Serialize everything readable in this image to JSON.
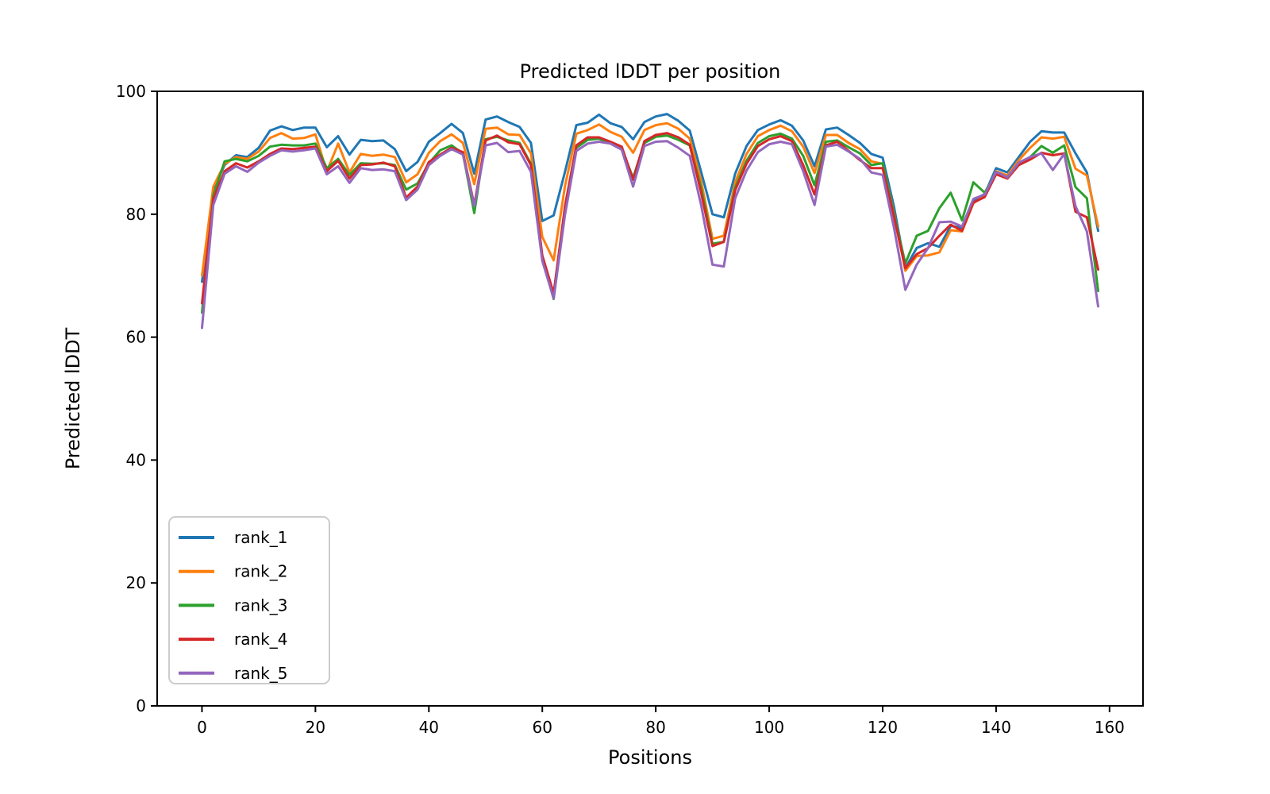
{
  "chart_data": {
    "type": "line",
    "title": "Predicted lDDT per position",
    "xlabel": "Positions",
    "ylabel": "Predicted lDDT",
    "legend_position": "lower-left",
    "axes": {
      "xlim": [
        -7.9,
        165.9
      ],
      "ylim": [
        0,
        100
      ],
      "xticks": [
        0,
        20,
        40,
        60,
        80,
        100,
        120,
        140,
        160
      ],
      "yticks": [
        0,
        20,
        40,
        60,
        80,
        100
      ],
      "grid": false
    },
    "x": [
      0,
      2,
      4,
      6,
      8,
      10,
      12,
      14,
      16,
      18,
      20,
      22,
      24,
      26,
      28,
      30,
      32,
      34,
      36,
      38,
      40,
      42,
      44,
      46,
      48,
      50,
      52,
      54,
      56,
      58,
      60,
      62,
      64,
      66,
      68,
      70,
      72,
      74,
      76,
      78,
      80,
      82,
      84,
      86,
      88,
      90,
      92,
      94,
      96,
      98,
      100,
      102,
      104,
      106,
      108,
      110,
      112,
      114,
      116,
      118,
      120,
      122,
      124,
      126,
      128,
      130,
      132,
      134,
      136,
      138,
      140,
      142,
      144,
      146,
      148,
      150,
      152,
      154,
      156,
      158
    ],
    "series": [
      {
        "name": "rank_1",
        "color": "#1f77b4",
        "values": [
          69.0,
          84.0,
          88.0,
          89.6,
          89.3,
          90.8,
          93.6,
          94.3,
          93.7,
          94.1,
          94.1,
          90.9,
          92.7,
          89.7,
          92.1,
          91.9,
          92.0,
          90.6,
          87.0,
          88.5,
          91.8,
          93.2,
          94.7,
          93.2,
          86.6,
          95.4,
          95.9,
          95.0,
          94.2,
          91.6,
          78.9,
          79.8,
          86.9,
          94.5,
          94.9,
          96.2,
          94.8,
          94.2,
          92.2,
          95.0,
          95.9,
          96.3,
          95.2,
          93.6,
          86.9,
          80.0,
          79.5,
          86.6,
          91.1,
          93.7,
          94.6,
          95.3,
          94.4,
          92.0,
          87.8,
          93.8,
          94.1,
          92.9,
          91.6,
          89.8,
          89.2,
          81.2,
          71.2,
          74.5,
          75.3,
          74.7,
          78.1,
          77.8,
          82.3,
          83.3,
          87.5,
          86.8,
          89.3,
          91.8,
          93.5,
          93.3,
          93.3,
          89.9,
          86.8,
          77.3
        ]
      },
      {
        "name": "rank_2",
        "color": "#ff7f0e",
        "values": [
          70.0,
          84.5,
          88.2,
          89.3,
          89.0,
          90.2,
          92.4,
          93.2,
          92.3,
          92.4,
          93.0,
          86.9,
          91.5,
          86.8,
          89.8,
          89.5,
          89.7,
          89.3,
          85.2,
          86.5,
          90.0,
          91.9,
          93.0,
          91.6,
          84.9,
          93.9,
          94.1,
          93.0,
          92.9,
          89.9,
          76.3,
          72.5,
          84.6,
          93.1,
          93.7,
          94.6,
          93.4,
          92.6,
          90.0,
          93.7,
          94.5,
          94.8,
          93.9,
          92.3,
          85.4,
          76.0,
          76.5,
          85.2,
          89.8,
          92.7,
          93.7,
          94.4,
          93.5,
          91.0,
          86.7,
          92.9,
          92.9,
          91.6,
          90.6,
          88.6,
          88.2,
          80.2,
          70.8,
          73.2,
          73.3,
          73.8,
          77.4,
          77.2,
          81.8,
          83.0,
          87.0,
          86.3,
          88.8,
          90.8,
          92.5,
          92.3,
          92.6,
          87.4,
          86.3,
          78.0
        ]
      },
      {
        "name": "rank_3",
        "color": "#2ca02c",
        "values": [
          64.0,
          83.0,
          88.6,
          89.0,
          88.6,
          89.5,
          91.0,
          91.3,
          91.2,
          91.2,
          91.5,
          87.5,
          89.0,
          86.4,
          88.3,
          88.2,
          88.3,
          88.0,
          84.0,
          85.0,
          88.3,
          90.4,
          91.2,
          89.9,
          80.2,
          92.2,
          92.6,
          92.0,
          91.6,
          88.2,
          73.0,
          66.2,
          80.6,
          90.8,
          92.1,
          92.3,
          91.5,
          90.6,
          85.9,
          91.6,
          92.6,
          92.8,
          92.1,
          91.2,
          84.3,
          75.2,
          75.5,
          84.3,
          88.7,
          91.6,
          92.7,
          93.1,
          92.3,
          89.5,
          84.7,
          91.8,
          92.0,
          90.9,
          89.9,
          88.0,
          88.3,
          80.0,
          72.0,
          76.5,
          77.3,
          81.0,
          83.5,
          79.0,
          85.2,
          83.5,
          86.8,
          86.0,
          88.3,
          89.3,
          91.1,
          90.0,
          91.2,
          84.4,
          82.6,
          67.5
        ]
      },
      {
        "name": "rank_4",
        "color": "#d62728",
        "values": [
          65.5,
          82.5,
          87.0,
          88.3,
          87.6,
          88.6,
          89.8,
          90.7,
          90.6,
          90.8,
          91.0,
          87.0,
          88.7,
          85.8,
          88.0,
          88.1,
          88.4,
          87.8,
          82.7,
          84.5,
          88.5,
          89.7,
          90.8,
          90.1,
          81.5,
          92.0,
          92.8,
          91.7,
          91.4,
          88.0,
          73.3,
          67.1,
          81.3,
          91.2,
          92.5,
          92.5,
          91.8,
          91.0,
          85.6,
          91.9,
          92.9,
          93.2,
          92.5,
          91.3,
          83.5,
          74.8,
          75.5,
          83.9,
          88.2,
          91.1,
          92.2,
          92.7,
          91.9,
          88.0,
          83.2,
          91.2,
          91.8,
          90.3,
          88.8,
          87.5,
          87.5,
          79.6,
          71.2,
          73.5,
          74.5,
          76.5,
          78.3,
          77.3,
          81.9,
          82.8,
          86.5,
          85.8,
          88.0,
          88.9,
          90.0,
          89.6,
          89.9,
          80.4,
          79.5,
          71.0
        ]
      },
      {
        "name": "rank_5",
        "color": "#9467bd",
        "values": [
          61.5,
          81.5,
          86.6,
          87.8,
          86.9,
          88.4,
          89.5,
          90.4,
          90.2,
          90.4,
          90.7,
          86.5,
          87.8,
          85.1,
          87.5,
          87.2,
          87.3,
          87.0,
          82.3,
          84.0,
          88.0,
          89.5,
          90.6,
          89.7,
          81.3,
          91.2,
          91.6,
          90.1,
          90.3,
          86.9,
          72.4,
          66.3,
          79.9,
          90.3,
          91.5,
          91.8,
          91.5,
          90.5,
          84.5,
          91.1,
          91.8,
          91.9,
          90.8,
          89.5,
          81.5,
          71.8,
          71.5,
          82.6,
          87.1,
          90.1,
          91.4,
          91.8,
          91.4,
          87.0,
          81.5,
          91.0,
          91.3,
          90.2,
          89.0,
          86.8,
          86.4,
          77.8,
          67.7,
          71.8,
          74.5,
          78.7,
          78.8,
          78.0,
          82.5,
          83.2,
          86.9,
          86.0,
          88.4,
          89.3,
          89.9,
          87.2,
          89.8,
          81.3,
          77.2,
          65.0
        ]
      }
    ]
  }
}
